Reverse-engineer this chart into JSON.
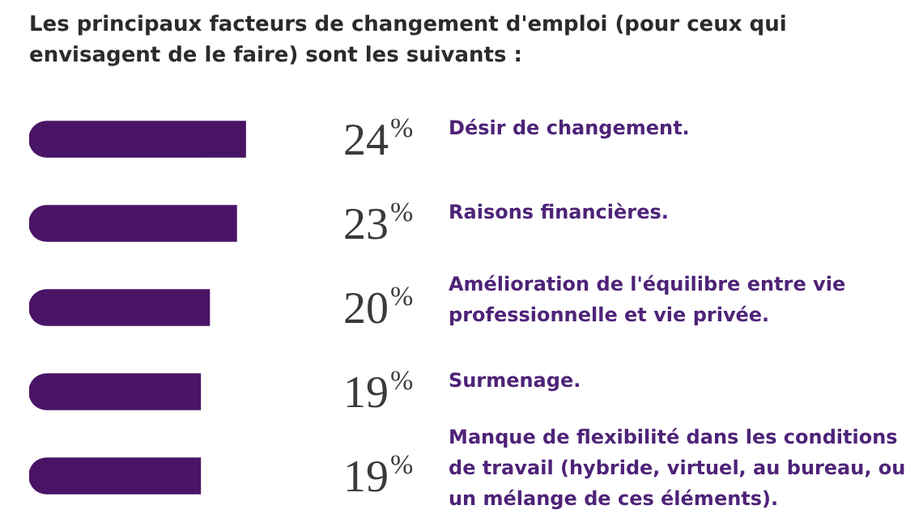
{
  "chart_data": {
    "type": "bar",
    "orientation": "horizontal",
    "title": "Les principaux facteurs de changement d'emploi (pour ceux qui envisagent de le faire) sont les suivants :",
    "categories": [
      "Désir de changement.",
      "Raisons financières.",
      "Amélioration de l'équilibre entre vie professionnelle et vie privée.",
      "Surmenage.",
      "Manque de flexibilité dans les conditions de travail (hybride, virtuel, au bureau, ou un mélange de ces éléments)."
    ],
    "values": [
      24,
      23,
      20,
      19,
      19
    ],
    "value_labels": [
      "24%",
      "23%",
      "20%",
      "19%",
      "19%"
    ],
    "color": "#4a1466",
    "tick_labels": false,
    "legend": false
  }
}
